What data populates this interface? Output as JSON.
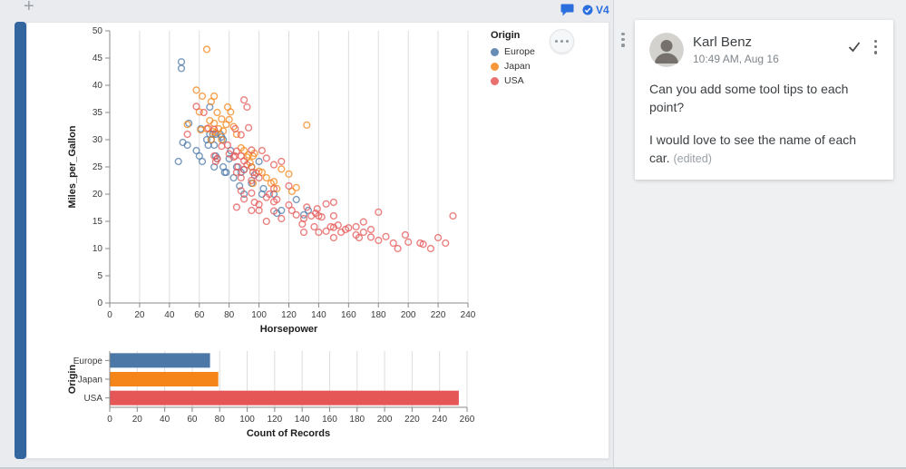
{
  "page": {
    "plus_label": "+",
    "version_label": "V4"
  },
  "legend": {
    "title": "Origin",
    "items": [
      {
        "label": "Europe",
        "color": "#4c78a8"
      },
      {
        "label": "Japan",
        "color": "#f58518"
      },
      {
        "label": "USA",
        "color": "#e45756"
      }
    ]
  },
  "comment": {
    "author": "Karl Benz",
    "timestamp": "10:49 AM, Aug 16",
    "paragraph1": "Can you add some tool tips to each point?",
    "paragraph2": "I would love to see the name of each car.",
    "edited_label": "(edited)"
  },
  "chart_data": [
    {
      "type": "scatter",
      "xlabel": "Horsepower",
      "ylabel": "Miles_per_Gallon",
      "xlim": [
        0,
        240
      ],
      "ylim": [
        0,
        50
      ],
      "xtick_step": 20,
      "ytick_step": 5,
      "legend_title": "Origin",
      "series": [
        {
          "name": "Europe",
          "color": "#4c78a8",
          "points": [
            [
              46,
              26
            ],
            [
              48,
              43.1
            ],
            [
              48,
              44.3
            ],
            [
              49,
              29.5
            ],
            [
              52,
              29
            ],
            [
              53,
              33
            ],
            [
              58,
              28
            ],
            [
              60,
              27
            ],
            [
              61,
              32
            ],
            [
              62,
              26
            ],
            [
              65,
              30
            ],
            [
              66,
              29
            ],
            [
              67,
              31
            ],
            [
              67,
              36
            ],
            [
              68,
              30
            ],
            [
              69,
              31
            ],
            [
              70,
              25
            ],
            [
              70,
              29
            ],
            [
              71,
              27
            ],
            [
              71,
              31
            ],
            [
              72,
              26.5
            ],
            [
              74,
              31
            ],
            [
              75,
              30.5
            ],
            [
              76,
              25
            ],
            [
              76,
              30
            ],
            [
              77,
              24
            ],
            [
              78,
              24
            ],
            [
              80,
              26.5
            ],
            [
              81,
              28
            ],
            [
              83,
              23
            ],
            [
              85,
              25
            ],
            [
              87,
              21.5
            ],
            [
              88,
              24
            ],
            [
              90,
              20
            ],
            [
              90,
              24.5
            ],
            [
              95,
              22
            ],
            [
              95,
              25
            ],
            [
              97,
              23.5
            ],
            [
              100,
              26
            ],
            [
              102,
              20
            ],
            [
              103,
              21
            ],
            [
              110,
              20
            ],
            [
              112,
              16.5
            ],
            [
              115,
              17
            ],
            [
              125,
              19
            ],
            [
              130,
              16.2
            ],
            [
              133,
              17
            ]
          ]
        },
        {
          "name": "Japan",
          "color": "#f58518",
          "points": [
            [
              52,
              32.8
            ],
            [
              58,
              39.1
            ],
            [
              60,
              35.1
            ],
            [
              61,
              31.8
            ],
            [
              62,
              38
            ],
            [
              65,
              32
            ],
            [
              65,
              46.6
            ],
            [
              67,
              33.5
            ],
            [
              68,
              30
            ],
            [
              68,
              37
            ],
            [
              69,
              31.5
            ],
            [
              70,
              33
            ],
            [
              70,
              38
            ],
            [
              71,
              31.3
            ],
            [
              72,
              35
            ],
            [
              73,
              32
            ],
            [
              75,
              30
            ],
            [
              75,
              33.8
            ],
            [
              76,
              31.6
            ],
            [
              78,
              32.8
            ],
            [
              79,
              36
            ],
            [
              80,
              33.7
            ],
            [
              81,
              35.1
            ],
            [
              83,
              32.4
            ],
            [
              85,
              31
            ],
            [
              88,
              28.5
            ],
            [
              90,
              28
            ],
            [
              92,
              26.8
            ],
            [
              93,
              27.2
            ],
            [
              94,
              25.8
            ],
            [
              95,
              25
            ],
            [
              96,
              22
            ],
            [
              96,
              27
            ],
            [
              97,
              27.5
            ],
            [
              100,
              24.2
            ],
            [
              102,
              24
            ],
            [
              105,
              23
            ],
            [
              108,
              22
            ],
            [
              110,
              22.3
            ],
            [
              112,
              21
            ],
            [
              115,
              24.6
            ],
            [
              120,
              23.7
            ],
            [
              122,
              20.5
            ],
            [
              125,
              21.2
            ],
            [
              132,
              32.7
            ]
          ]
        },
        {
          "name": "USA",
          "color": "#e45756",
          "points": [
            [
              52,
              31
            ],
            [
              58,
              36.1
            ],
            [
              63,
              35
            ],
            [
              66,
              32.1
            ],
            [
              70,
              27
            ],
            [
              70,
              31.9
            ],
            [
              71,
              26
            ],
            [
              72,
              26.5
            ],
            [
              75,
              28.8
            ],
            [
              79,
              29
            ],
            [
              80,
              27.4
            ],
            [
              83,
              26.8
            ],
            [
              84,
              27
            ],
            [
              84,
              32
            ],
            [
              85,
              17.6
            ],
            [
              85,
              24
            ],
            [
              85,
              27.9
            ],
            [
              86,
              25
            ],
            [
              88,
              20.6
            ],
            [
              88,
              23
            ],
            [
              88,
              27
            ],
            [
              88,
              30.9
            ],
            [
              90,
              19.1
            ],
            [
              90,
              24.5
            ],
            [
              90,
              26.1
            ],
            [
              90,
              37.3
            ],
            [
              92,
              25.4
            ],
            [
              92,
              36
            ],
            [
              93,
              32.2
            ],
            [
              95,
              17
            ],
            [
              95,
              20.2
            ],
            [
              95,
              22.5
            ],
            [
              95,
              28.1
            ],
            [
              96,
              24
            ],
            [
              97,
              18.5
            ],
            [
              98,
              23.9
            ],
            [
              100,
              17
            ],
            [
              100,
              18.1
            ],
            [
              100,
              23
            ],
            [
              102,
              28
            ],
            [
              105,
              15
            ],
            [
              105,
              19.4
            ],
            [
              105,
              26.6
            ],
            [
              107,
              20
            ],
            [
              110,
              16.9
            ],
            [
              110,
              18.6
            ],
            [
              110,
              21
            ],
            [
              110,
              25.4
            ],
            [
              112,
              19
            ],
            [
              115,
              15.5
            ],
            [
              115,
              26
            ],
            [
              120,
              18
            ],
            [
              120,
              21.5
            ],
            [
              122,
              17
            ],
            [
              125,
              16.2
            ],
            [
              129,
              14.5
            ],
            [
              130,
              13
            ],
            [
              130,
              15.5
            ],
            [
              132,
              17.6
            ],
            [
              135,
              16
            ],
            [
              137,
              14
            ],
            [
              138,
              16.5
            ],
            [
              139,
              17.3
            ],
            [
              140,
              13
            ],
            [
              140,
              16
            ],
            [
              142,
              15.8
            ],
            [
              145,
              13.2
            ],
            [
              145,
              18.2
            ],
            [
              148,
              14
            ],
            [
              150,
              12
            ],
            [
              150,
              13.9
            ],
            [
              150,
              16
            ],
            [
              150,
              18.5
            ],
            [
              153,
              14.3
            ],
            [
              155,
              13
            ],
            [
              158,
              13.5
            ],
            [
              160,
              13.8
            ],
            [
              165,
              12.5
            ],
            [
              165,
              14
            ],
            [
              167,
              12
            ],
            [
              170,
              13
            ],
            [
              170,
              14.9
            ],
            [
              175,
              12.1
            ],
            [
              175,
              13.5
            ],
            [
              180,
              11.5
            ],
            [
              180,
              16.7
            ],
            [
              185,
              12.2
            ],
            [
              190,
              11
            ],
            [
              193,
              10
            ],
            [
              198,
              12.5
            ],
            [
              200,
              11.2
            ],
            [
              208,
              11
            ],
            [
              210,
              10.8
            ],
            [
              215,
              10
            ],
            [
              220,
              12
            ],
            [
              225,
              11
            ],
            [
              230,
              16
            ]
          ]
        }
      ]
    },
    {
      "type": "bar",
      "orientation": "horizontal",
      "categories": [
        "Europe",
        "Japan",
        "USA"
      ],
      "values": [
        73,
        79,
        254
      ],
      "colors": [
        "#4c78a8",
        "#f58518",
        "#e45756"
      ],
      "xlabel": "Count of Records",
      "ylabel": "Origin",
      "xlim": [
        0,
        260
      ],
      "xtick_step": 20
    }
  ]
}
